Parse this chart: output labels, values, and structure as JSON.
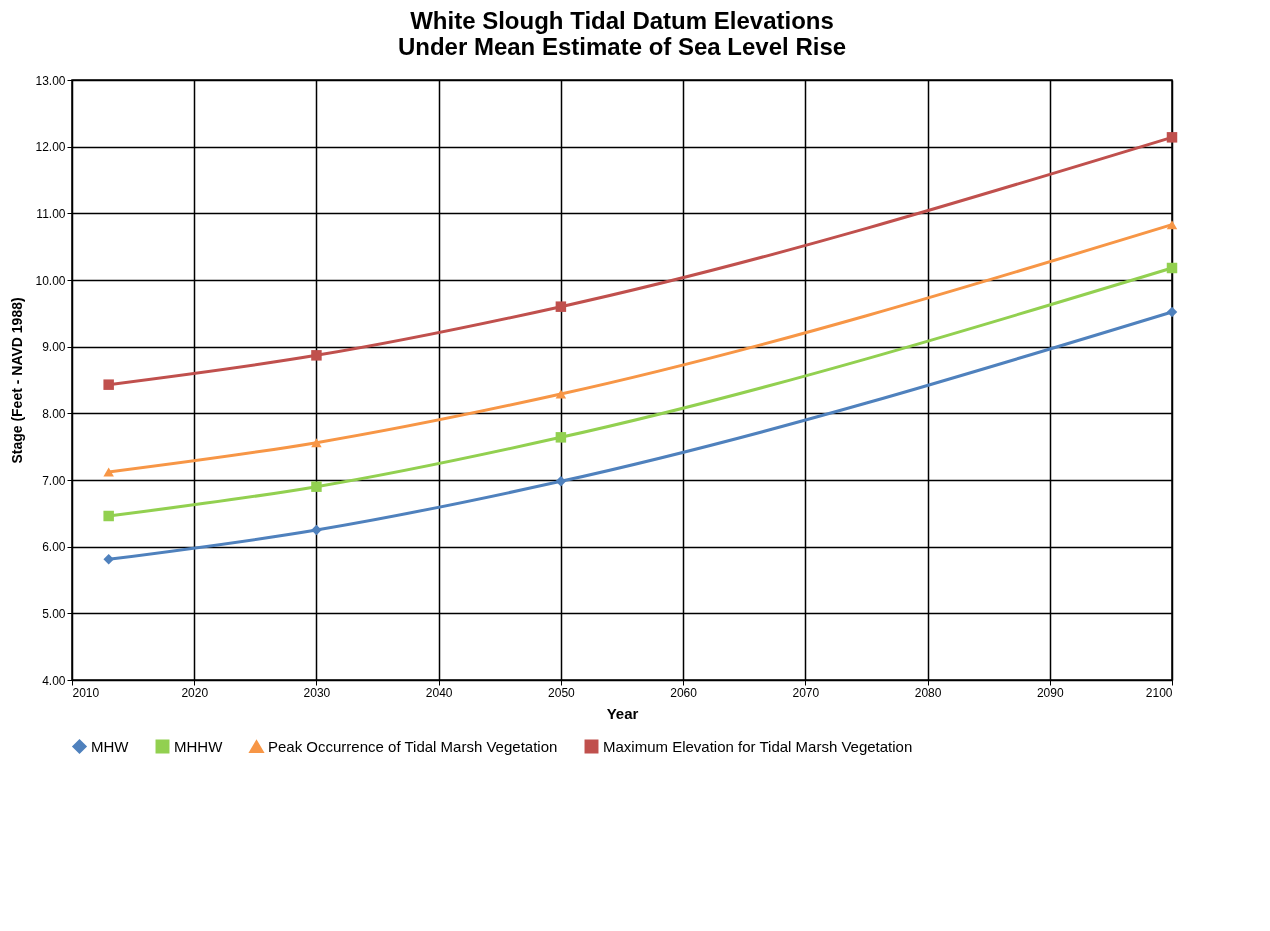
{
  "chart_data": {
    "type": "line",
    "title": "White Slough Tidal Datum Elevations\nUnder Mean Estimate of Sea Level Rise",
    "xlabel": "Year",
    "ylabel": "Stage (Feet  - NAVD 1988)",
    "x": [
      2013,
      2030,
      2050,
      2100
    ],
    "series": [
      {
        "name": "MHW",
        "color": "#4f81bd",
        "marker": "diamond",
        "values": [
          5.81,
          6.25,
          6.98,
          9.52
        ]
      },
      {
        "name": "MHHW",
        "color": "#92d050",
        "marker": "square",
        "values": [
          6.46,
          6.9,
          7.64,
          10.18
        ]
      },
      {
        "name": "Peak Occurrence of Tidal Marsh Vegetation",
        "color": "#f79646",
        "marker": "triangle",
        "values": [
          7.12,
          7.56,
          8.29,
          10.83
        ]
      },
      {
        "name": "Maximum Elevation for Tidal Marsh Vegetation",
        "color": "#c0504d",
        "marker": "square",
        "values": [
          8.43,
          8.87,
          9.6,
          12.14
        ]
      }
    ],
    "xlim": [
      2010,
      2100
    ],
    "xticks": [
      2010,
      2020,
      2030,
      2040,
      2050,
      2060,
      2070,
      2080,
      2090,
      2100
    ],
    "ylim": [
      4,
      13
    ],
    "yticks": [
      {
        "value": 4,
        "label": "4.00"
      },
      {
        "value": 5,
        "label": "5.00"
      },
      {
        "value": 6,
        "label": "6.00"
      },
      {
        "value": 7,
        "label": "7.00"
      },
      {
        "value": 8,
        "label": "8.00"
      },
      {
        "value": 9,
        "label": "9.00"
      },
      {
        "value": 10,
        "label": "10.00"
      },
      {
        "value": 11,
        "label": "11.00"
      },
      {
        "value": 12,
        "label": "12.00"
      },
      {
        "value": 13,
        "label": "13.00"
      }
    ],
    "grid": true,
    "legend": "bottom",
    "line_style": "solid"
  }
}
